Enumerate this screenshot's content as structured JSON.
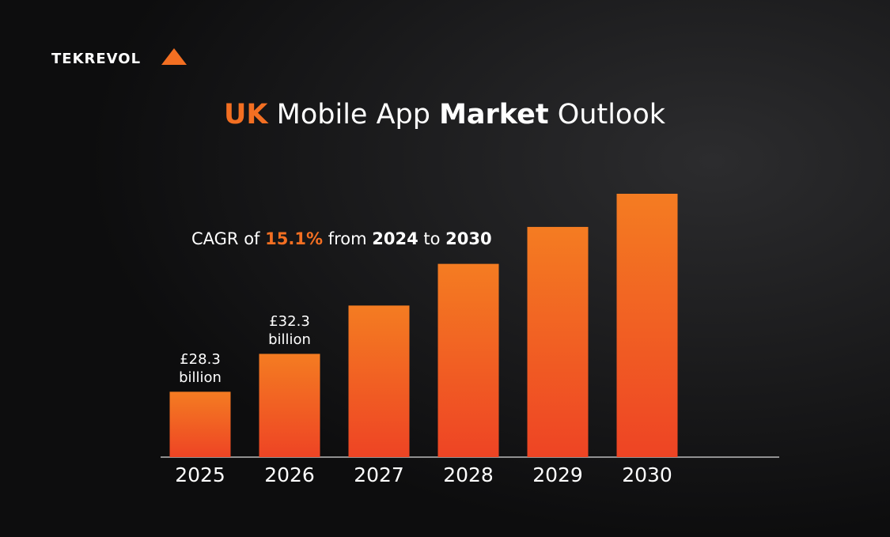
{
  "brand": "TEKREVOL",
  "chart_data": {
    "type": "bar",
    "title": [
      "UK",
      "Mobile App",
      "Market",
      "Outlook"
    ],
    "annotation": [
      "CAGR of",
      "15.1%",
      "from",
      "2024",
      "to",
      "2030"
    ],
    "categories": [
      "2025",
      "2026",
      "2027",
      "2028",
      "2029",
      "2030"
    ],
    "values": [
      28.3,
      32.3,
      37.4,
      41.8,
      45.7,
      49.2
    ],
    "value_labels": [
      "£28.3 billion",
      "£32.3 billion",
      null,
      null,
      null,
      null
    ],
    "color": "#f36f22",
    "ylim": [
      21.4,
      49.2
    ]
  }
}
